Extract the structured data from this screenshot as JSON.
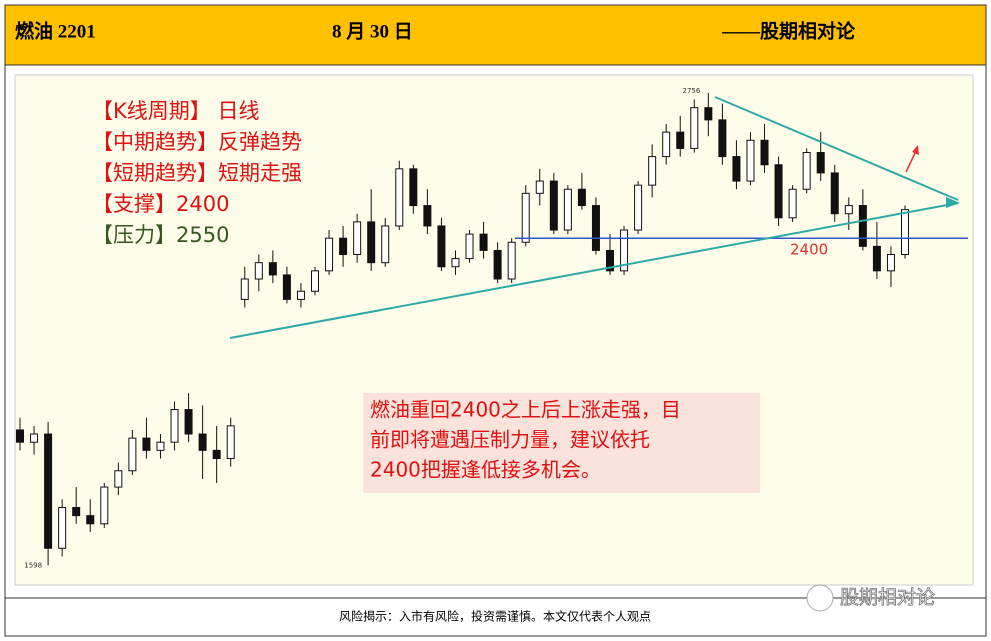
{
  "header": {
    "left": "燃油 2201",
    "date": "8 月 30 日",
    "right": "——股期相对论"
  },
  "notes": [
    "【K线周期】 日线",
    "【中期趋势】反弹趋势",
    "【短期趋势】短期走强",
    "【支撑】2400",
    "【压力】2550"
  ],
  "comment": [
    "燃油重回2400之上后上涨走强，目",
    "前即将遭遇压制力量，建议依托",
    "2400把握逢低接多机会。"
  ],
  "footer": "风险揭示：入市有风险，投资需谨慎。本文仅代表个人观点",
  "watermark": "股期相对论",
  "chart_data": {
    "type": "candlestick",
    "ylim": [
      1550,
      2800
    ],
    "high_label": 2756,
    "low_label": 1598,
    "support_line": 2400,
    "candles": [
      [
        1930,
        1960,
        1880,
        1900
      ],
      [
        1900,
        1940,
        1870,
        1920
      ],
      [
        1920,
        1950,
        1598,
        1640
      ],
      [
        1640,
        1760,
        1620,
        1740
      ],
      [
        1740,
        1790,
        1700,
        1720
      ],
      [
        1720,
        1760,
        1680,
        1700
      ],
      [
        1700,
        1800,
        1690,
        1790
      ],
      [
        1790,
        1850,
        1770,
        1830
      ],
      [
        1830,
        1930,
        1820,
        1910
      ],
      [
        1910,
        1960,
        1860,
        1880
      ],
      [
        1880,
        1920,
        1860,
        1900
      ],
      [
        1900,
        2000,
        1880,
        1980
      ],
      [
        1980,
        2020,
        1900,
        1920
      ],
      [
        1920,
        1990,
        1810,
        1880
      ],
      [
        1880,
        1940,
        1800,
        1860
      ],
      [
        1860,
        1960,
        1840,
        1940
      ],
      [
        2250,
        2330,
        2230,
        2300
      ],
      [
        2300,
        2360,
        2270,
        2340
      ],
      [
        2340,
        2370,
        2290,
        2310
      ],
      [
        2310,
        2330,
        2240,
        2250
      ],
      [
        2250,
        2290,
        2230,
        2270
      ],
      [
        2270,
        2330,
        2260,
        2320
      ],
      [
        2320,
        2420,
        2310,
        2400
      ],
      [
        2400,
        2430,
        2330,
        2360
      ],
      [
        2360,
        2460,
        2340,
        2440
      ],
      [
        2440,
        2520,
        2320,
        2340
      ],
      [
        2340,
        2450,
        2330,
        2430
      ],
      [
        2430,
        2590,
        2420,
        2570
      ],
      [
        2570,
        2580,
        2460,
        2480
      ],
      [
        2480,
        2520,
        2410,
        2430
      ],
      [
        2430,
        2450,
        2320,
        2330
      ],
      [
        2330,
        2370,
        2310,
        2350
      ],
      [
        2350,
        2420,
        2340,
        2410
      ],
      [
        2410,
        2440,
        2350,
        2370
      ],
      [
        2370,
        2390,
        2290,
        2300
      ],
      [
        2300,
        2400,
        2290,
        2390
      ],
      [
        2390,
        2530,
        2380,
        2510
      ],
      [
        2510,
        2570,
        2480,
        2540
      ],
      [
        2540,
        2560,
        2410,
        2420
      ],
      [
        2420,
        2530,
        2410,
        2520
      ],
      [
        2520,
        2560,
        2470,
        2480
      ],
      [
        2480,
        2500,
        2360,
        2370
      ],
      [
        2370,
        2410,
        2310,
        2320
      ],
      [
        2320,
        2430,
        2310,
        2420
      ],
      [
        2420,
        2540,
        2410,
        2530
      ],
      [
        2530,
        2630,
        2500,
        2600
      ],
      [
        2600,
        2680,
        2580,
        2660
      ],
      [
        2660,
        2700,
        2600,
        2620
      ],
      [
        2620,
        2740,
        2610,
        2720
      ],
      [
        2720,
        2756,
        2650,
        2690
      ],
      [
        2690,
        2730,
        2580,
        2600
      ],
      [
        2600,
        2640,
        2520,
        2540
      ],
      [
        2540,
        2660,
        2530,
        2640
      ],
      [
        2640,
        2680,
        2560,
        2580
      ],
      [
        2580,
        2600,
        2430,
        2450
      ],
      [
        2450,
        2530,
        2440,
        2520
      ],
      [
        2520,
        2620,
        2510,
        2610
      ],
      [
        2610,
        2660,
        2540,
        2560
      ],
      [
        2560,
        2580,
        2440,
        2460
      ],
      [
        2460,
        2500,
        2420,
        2480
      ],
      [
        2480,
        2520,
        2370,
        2380
      ],
      [
        2380,
        2440,
        2300,
        2320
      ],
      [
        2320,
        2380,
        2280,
        2360
      ],
      [
        2360,
        2480,
        2350,
        2470
      ]
    ]
  }
}
